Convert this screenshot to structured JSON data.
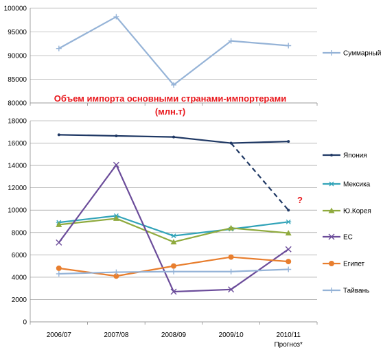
{
  "chart_data": [
    {
      "type": "line",
      "panel": "top",
      "categories": [
        "2006/07",
        "2007/08",
        "2008/09",
        "2009/10",
        "2010/11"
      ],
      "ylim": [
        80000,
        100000
      ],
      "yticks": [
        "80000",
        "85000",
        "90000",
        "95000",
        "100000"
      ],
      "grid": true,
      "legend_position": "right",
      "series": [
        {
          "name": "Суммарный",
          "values": [
            91500,
            98200,
            83800,
            93100,
            92100
          ],
          "color": "#95b3d7",
          "marker": "plus"
        }
      ]
    },
    {
      "type": "line",
      "panel": "bottom",
      "title_line1": "Объем импорта основными странами-импортерами",
      "title_line2": "(млн.т)",
      "categories": [
        "2006/07",
        "2007/08",
        "2008/09",
        "2009/10",
        "2010/11"
      ],
      "category_sublabels": [
        "",
        "",
        "",
        "",
        "Прогноз*"
      ],
      "ylim": [
        0,
        18000
      ],
      "yticks": [
        "0",
        "2000",
        "4000",
        "6000",
        "8000",
        "10000",
        "12000",
        "14000",
        "16000",
        "18000"
      ],
      "grid": true,
      "legend_position": "right",
      "annotation": "?",
      "forecast_line": {
        "series": "Япония",
        "values": [
          16000,
          10000
        ]
      },
      "series": [
        {
          "name": "Япония",
          "values": [
            16750,
            16650,
            16550,
            16000,
            16150
          ],
          "color": "#1f3864",
          "marker": "dot"
        },
        {
          "name": "Мексика",
          "values": [
            8900,
            9500,
            7700,
            8300,
            8950
          ],
          "color": "#31a3b8",
          "marker": "asterisk"
        },
        {
          "name": "Ю.Корея",
          "values": [
            8700,
            9250,
            7150,
            8400,
            7950
          ],
          "color": "#8faa3e",
          "marker": "triangle"
        },
        {
          "name": "ЕС",
          "values": [
            7100,
            14050,
            2700,
            2900,
            6500
          ],
          "color": "#6b4c9a",
          "marker": "x"
        },
        {
          "name": "Египет",
          "values": [
            4800,
            4100,
            5000,
            5800,
            5400
          ],
          "color": "#e87e2e",
          "marker": "circle"
        },
        {
          "name": "Тайвань",
          "values": [
            4300,
            4450,
            4500,
            4500,
            4700
          ],
          "color": "#95b3d7",
          "marker": "plus"
        }
      ]
    }
  ]
}
